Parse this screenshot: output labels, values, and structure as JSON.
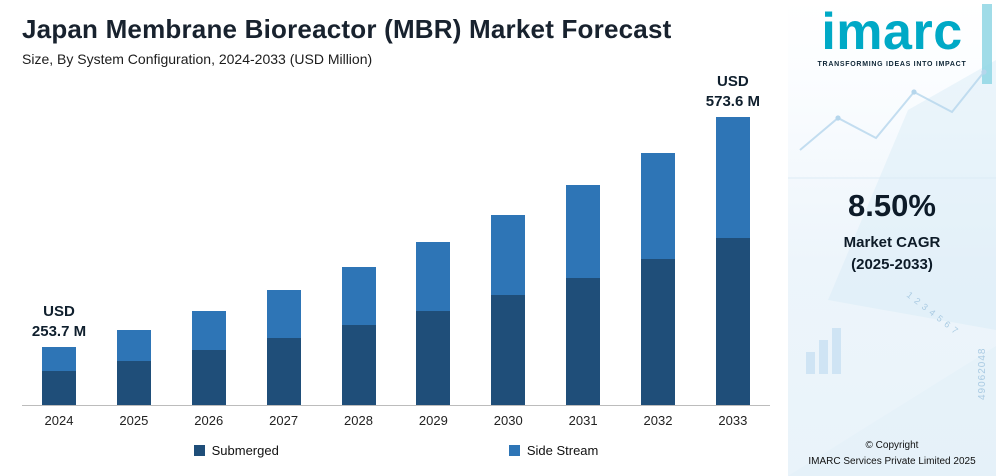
{
  "header": {
    "title": "Japan Membrane Bioreactor (MBR) Market Forecast",
    "subtitle": "Size, By System Configuration, 2024-2033 (USD Million)"
  },
  "chart_data": {
    "type": "bar",
    "stacked": true,
    "title": "Japan Membrane Bioreactor (MBR) Market Forecast",
    "xlabel": "",
    "ylabel": "USD Million",
    "ylim": [
      0,
      600
    ],
    "grid": false,
    "legend_position": "bottom",
    "categories": [
      "2024",
      "2025",
      "2026",
      "2027",
      "2028",
      "2029",
      "2030",
      "2031",
      "2032",
      "2033"
    ],
    "series": [
      {
        "name": "Submerged",
        "color": "#1f4e79",
        "values": [
          147.1,
          161.1,
          176.4,
          193.1,
          211.5,
          231.5,
          253.5,
          277.6,
          303.9,
          332.7
        ]
      },
      {
        "name": "Side Stream",
        "color": "#2e75b6",
        "values": [
          106.6,
          116.7,
          127.7,
          139.9,
          153.1,
          167.7,
          183.6,
          201.0,
          220.1,
          240.9
        ]
      }
    ],
    "totals": [
      253.7,
      277.8,
      304.1,
      333.0,
      364.6,
      399.2,
      437.1,
      478.6,
      524.0,
      573.6
    ],
    "annotations": [
      {
        "category": "2024",
        "lines": [
          "USD",
          "253.7 M"
        ]
      },
      {
        "category": "2033",
        "lines": [
          "USD",
          "573.6 M"
        ]
      }
    ]
  },
  "sidebar": {
    "logo_text": "imarc",
    "logo_color": "#00a9c6",
    "tagline": "TRANSFORMING IDEAS INTO IMPACT",
    "cagr_value": "8.50%",
    "cagr_label_line1": "Market CAGR",
    "cagr_label_line2": "(2025-2033)",
    "copyright_line1": "© Copyright",
    "copyright_line2": "IMARC Services Private Limited 2025",
    "decor_numbers_vertical": "49062048",
    "decor_numbers_diagonal": "1 2 3 4 5 6 7"
  }
}
